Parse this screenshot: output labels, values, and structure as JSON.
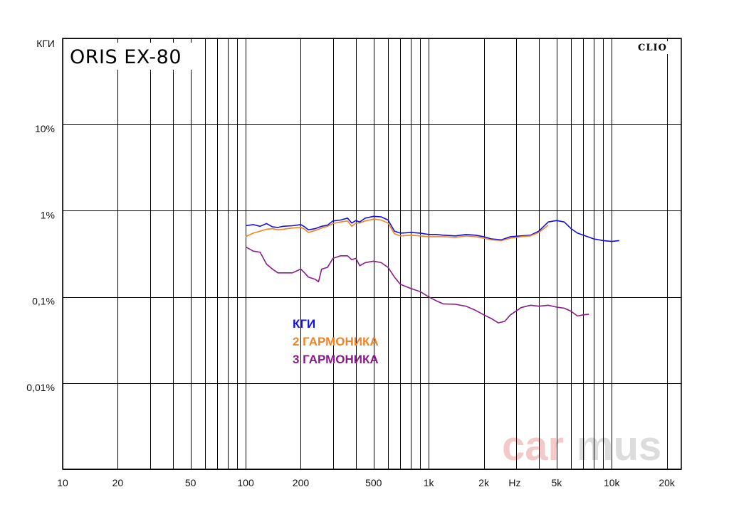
{
  "product_title": "ORIS EX-80",
  "brand_label": "CLIO",
  "watermark": {
    "part1": "car",
    "part2": "mus"
  },
  "colors": {
    "thd": "#1010e0",
    "h2": "#f58220",
    "h3": "#8b1a8b",
    "grid": "#000000",
    "wm1": "#f4c9c9",
    "wm2": "#dcdcdc"
  },
  "chart_data": {
    "type": "line",
    "title": "ORIS EX-80",
    "xlabel": "Hz",
    "ylabel": "КГИ",
    "x_scale": "log",
    "y_scale": "log",
    "xlim": [
      10,
      24000
    ],
    "ylim": [
      0.001,
      100
    ],
    "grid": true,
    "legend_position": "center-left",
    "x_ticks": [
      {
        "value": 10,
        "label": "10"
      },
      {
        "value": 20,
        "label": "20"
      },
      {
        "value": 50,
        "label": "50"
      },
      {
        "value": 100,
        "label": "100"
      },
      {
        "value": 200,
        "label": "200"
      },
      {
        "value": 500,
        "label": "500"
      },
      {
        "value": 1000,
        "label": "1k"
      },
      {
        "value": 2000,
        "label": "2k"
      },
      {
        "value": 5000,
        "label": "5k"
      },
      {
        "value": 10000,
        "label": "10k"
      },
      {
        "value": 20000,
        "label": "20k"
      }
    ],
    "x_unit_label": "Hz",
    "y_ticks": [
      {
        "value": 100,
        "label": "КГИ"
      },
      {
        "value": 10,
        "label": "10%"
      },
      {
        "value": 1,
        "label": "1%"
      },
      {
        "value": 0.1,
        "label": "0,1%"
      },
      {
        "value": 0.01,
        "label": "0,01%"
      }
    ],
    "series": [
      {
        "name": "КГИ",
        "color": "#1010e0",
        "points": [
          [
            100,
            0.67
          ],
          [
            110,
            0.69
          ],
          [
            120,
            0.66
          ],
          [
            130,
            0.71
          ],
          [
            140,
            0.65
          ],
          [
            150,
            0.64
          ],
          [
            160,
            0.66
          ],
          [
            180,
            0.67
          ],
          [
            200,
            0.69
          ],
          [
            210,
            0.65
          ],
          [
            220,
            0.6
          ],
          [
            240,
            0.62
          ],
          [
            260,
            0.66
          ],
          [
            280,
            0.68
          ],
          [
            300,
            0.76
          ],
          [
            330,
            0.78
          ],
          [
            360,
            0.82
          ],
          [
            380,
            0.72
          ],
          [
            400,
            0.77
          ],
          [
            420,
            0.74
          ],
          [
            450,
            0.82
          ],
          [
            500,
            0.86
          ],
          [
            550,
            0.85
          ],
          [
            600,
            0.78
          ],
          [
            650,
            0.58
          ],
          [
            700,
            0.55
          ],
          [
            800,
            0.56
          ],
          [
            900,
            0.55
          ],
          [
            1000,
            0.53
          ],
          [
            1100,
            0.53
          ],
          [
            1200,
            0.52
          ],
          [
            1400,
            0.51
          ],
          [
            1600,
            0.53
          ],
          [
            1800,
            0.52
          ],
          [
            2000,
            0.5
          ],
          [
            2200,
            0.47
          ],
          [
            2500,
            0.46
          ],
          [
            2800,
            0.5
          ],
          [
            3200,
            0.51
          ],
          [
            3600,
            0.52
          ],
          [
            4000,
            0.58
          ],
          [
            4500,
            0.74
          ],
          [
            5000,
            0.77
          ],
          [
            5500,
            0.74
          ],
          [
            6000,
            0.62
          ],
          [
            6500,
            0.55
          ],
          [
            7000,
            0.52
          ],
          [
            8000,
            0.47
          ],
          [
            9000,
            0.45
          ],
          [
            10000,
            0.44
          ],
          [
            11000,
            0.45
          ]
        ]
      },
      {
        "name": "2 ГАРМОНИКА",
        "color": "#f58220",
        "points": [
          [
            100,
            0.5
          ],
          [
            110,
            0.55
          ],
          [
            120,
            0.58
          ],
          [
            130,
            0.61
          ],
          [
            140,
            0.62
          ],
          [
            150,
            0.6
          ],
          [
            160,
            0.61
          ],
          [
            180,
            0.63
          ],
          [
            200,
            0.64
          ],
          [
            210,
            0.61
          ],
          [
            220,
            0.56
          ],
          [
            240,
            0.59
          ],
          [
            260,
            0.63
          ],
          [
            280,
            0.66
          ],
          [
            300,
            0.71
          ],
          [
            330,
            0.74
          ],
          [
            360,
            0.76
          ],
          [
            380,
            0.66
          ],
          [
            400,
            0.72
          ],
          [
            420,
            0.72
          ],
          [
            450,
            0.76
          ],
          [
            500,
            0.8
          ],
          [
            550,
            0.78
          ],
          [
            600,
            0.72
          ],
          [
            650,
            0.54
          ],
          [
            700,
            0.51
          ],
          [
            800,
            0.52
          ],
          [
            900,
            0.51
          ],
          [
            1000,
            0.5
          ],
          [
            1100,
            0.5
          ],
          [
            1200,
            0.5
          ],
          [
            1400,
            0.49
          ],
          [
            1600,
            0.51
          ],
          [
            1800,
            0.5
          ],
          [
            2000,
            0.48
          ],
          [
            2200,
            0.46
          ],
          [
            2500,
            0.45
          ],
          [
            2800,
            0.48
          ],
          [
            3200,
            0.5
          ],
          [
            3600,
            0.51
          ],
          [
            4000,
            0.56
          ],
          [
            4500,
            0.68
          ]
        ]
      },
      {
        "name": "3 ГАРМОНИКА",
        "color": "#8b1a8b",
        "points": [
          [
            100,
            0.38
          ],
          [
            110,
            0.34
          ],
          [
            120,
            0.33
          ],
          [
            130,
            0.24
          ],
          [
            140,
            0.21
          ],
          [
            150,
            0.19
          ],
          [
            160,
            0.19
          ],
          [
            180,
            0.19
          ],
          [
            200,
            0.21
          ],
          [
            210,
            0.19
          ],
          [
            220,
            0.17
          ],
          [
            240,
            0.16
          ],
          [
            250,
            0.15
          ],
          [
            260,
            0.21
          ],
          [
            280,
            0.22
          ],
          [
            300,
            0.28
          ],
          [
            330,
            0.3
          ],
          [
            360,
            0.3
          ],
          [
            380,
            0.27
          ],
          [
            400,
            0.28
          ],
          [
            420,
            0.23
          ],
          [
            450,
            0.25
          ],
          [
            500,
            0.26
          ],
          [
            550,
            0.25
          ],
          [
            600,
            0.22
          ],
          [
            650,
            0.17
          ],
          [
            700,
            0.14
          ],
          [
            800,
            0.125
          ],
          [
            900,
            0.115
          ],
          [
            1000,
            0.1
          ],
          [
            1100,
            0.09
          ],
          [
            1200,
            0.083
          ],
          [
            1400,
            0.082
          ],
          [
            1600,
            0.078
          ],
          [
            1800,
            0.07
          ],
          [
            2000,
            0.062
          ],
          [
            2200,
            0.056
          ],
          [
            2400,
            0.05
          ],
          [
            2600,
            0.052
          ],
          [
            2800,
            0.062
          ],
          [
            3200,
            0.075
          ],
          [
            3600,
            0.08
          ],
          [
            4000,
            0.078
          ],
          [
            4500,
            0.08
          ],
          [
            5000,
            0.076
          ],
          [
            5500,
            0.074
          ],
          [
            6000,
            0.068
          ],
          [
            6500,
            0.06
          ],
          [
            7000,
            0.062
          ],
          [
            7500,
            0.063
          ]
        ]
      }
    ]
  }
}
